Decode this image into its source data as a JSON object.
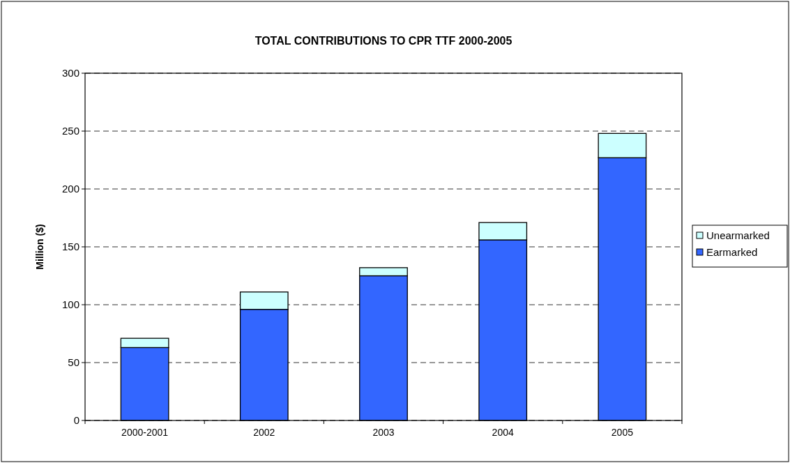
{
  "chart_data": {
    "type": "bar",
    "title": "TOTAL CONTRIBUTIONS TO CPR TTF 2000-2005",
    "ylabel": "Million ($)",
    "categories": [
      "2000-2001",
      "2002",
      "2003",
      "2004",
      "2005"
    ],
    "series": [
      {
        "name": "Earmarked",
        "color": "#3366ff",
        "values": [
          63,
          96,
          125,
          156,
          227
        ]
      },
      {
        "name": "Unearmarked",
        "color": "#ccffff",
        "values": [
          8,
          15,
          7,
          15,
          21
        ]
      }
    ],
    "stacked": true,
    "ylim": [
      0,
      300
    ],
    "yticks": [
      0,
      50,
      100,
      150,
      200,
      250,
      300
    ],
    "grid": "y",
    "legend": "right"
  }
}
